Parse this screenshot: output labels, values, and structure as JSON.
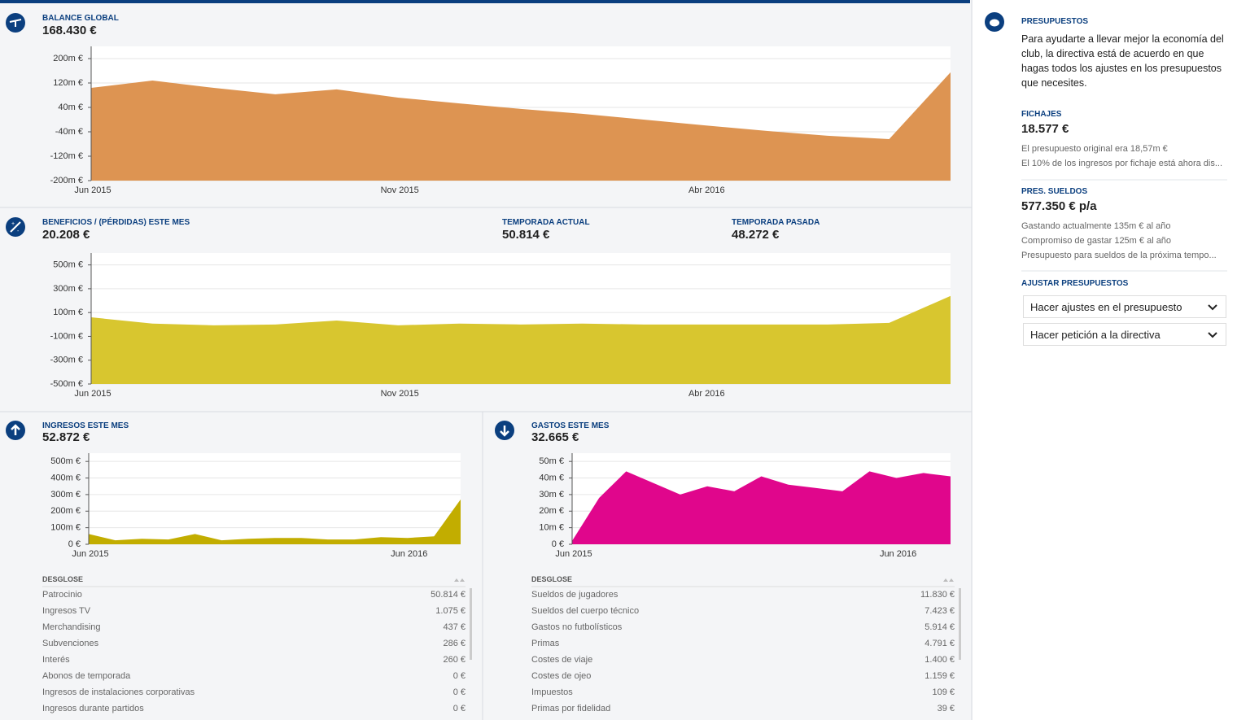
{
  "chart_data": [
    {
      "type": "area",
      "title": "BALANCE GLOBAL",
      "value": "168.430 €",
      "color": "#dd9452",
      "categories": [
        "Jun 2015",
        null,
        null,
        null,
        null,
        "Nov 2015",
        null,
        null,
        null,
        null,
        "Abr 2016",
        null,
        null,
        null,
        null
      ],
      "values": [
        104,
        128,
        104,
        83,
        99,
        72,
        53,
        35,
        19,
        0,
        -19,
        -37,
        -53,
        -64,
        155
      ],
      "ylim": [
        -200,
        240
      ],
      "yticks": [
        {
          "value": 200,
          "label": "200m €"
        },
        {
          "value": 120,
          "label": "120m €"
        },
        {
          "value": 40,
          "label": "40m €"
        },
        {
          "value": -40,
          "label": "-40m €"
        },
        {
          "value": -120,
          "label": "-120m €"
        },
        {
          "value": -200,
          "label": "-200m €"
        }
      ],
      "grid": true
    },
    {
      "type": "area",
      "title": "BENEFICIOS / (PÉRDIDAS) ESTE MES",
      "value": "20.208 €",
      "color": "#d8c62f",
      "stats": [
        {
          "label": "TEMPORADA ACTUAL",
          "value": "50.814 €"
        },
        {
          "label": "TEMPORADA PASADA",
          "value": "48.272 €"
        }
      ],
      "categories": [
        "Jun 2015",
        null,
        null,
        null,
        null,
        "Nov 2015",
        null,
        null,
        null,
        null,
        "Abr 2016",
        null,
        null,
        null,
        null
      ],
      "values": [
        60,
        7,
        -7,
        0,
        33,
        -7,
        7,
        0,
        7,
        0,
        0,
        0,
        0,
        13,
        240
      ],
      "ylim": [
        -500,
        600
      ],
      "yticks": [
        {
          "value": 500,
          "label": "500m €"
        },
        {
          "value": 300,
          "label": "300m €"
        },
        {
          "value": 100,
          "label": "100m €"
        },
        {
          "value": -100,
          "label": "-100m €"
        },
        {
          "value": -300,
          "label": "-300m €"
        },
        {
          "value": -500,
          "label": "-500m €"
        }
      ],
      "grid": true
    },
    {
      "type": "area",
      "title": "INGRESOS ESTE MES",
      "value": "52.872 €",
      "color": "#c2ad00",
      "categories": [
        "Jun 2015",
        null,
        null,
        null,
        null,
        null,
        null,
        null,
        null,
        null,
        null,
        null,
        "Jun 2016",
        null,
        null
      ],
      "values": [
        62,
        24,
        33,
        29,
        62,
        24,
        33,
        38,
        38,
        29,
        29,
        43,
        38,
        48,
        271
      ],
      "ylim": [
        0,
        550
      ],
      "yticks": [
        {
          "value": 500,
          "label": "500m €"
        },
        {
          "value": 400,
          "label": "400m €"
        },
        {
          "value": 300,
          "label": "300m €"
        },
        {
          "value": 200,
          "label": "200m €"
        },
        {
          "value": 100,
          "label": "100m €"
        },
        {
          "value": 0,
          "label": "0 €"
        }
      ],
      "grid": true,
      "breakdown": {
        "header": "DESGLOSE",
        "rows": [
          [
            "Patrocinio",
            "50.814 €"
          ],
          [
            "Ingresos TV",
            "1.075 €"
          ],
          [
            "Merchandising",
            "437 €"
          ],
          [
            "Subvenciones",
            "286 €"
          ],
          [
            "Interés",
            "260 €"
          ],
          [
            "Abonos de temporada",
            "0 €"
          ],
          [
            "Ingresos de instalaciones corporativas",
            "0 €"
          ],
          [
            "Ingresos durante partidos",
            "0 €"
          ]
        ]
      }
    },
    {
      "type": "area",
      "title": "GASTOS ESTE MES",
      "value": "32.665 €",
      "color": "#e0068c",
      "categories": [
        "Jun 2015",
        null,
        null,
        null,
        null,
        null,
        null,
        null,
        null,
        null,
        null,
        null,
        "Jun 2016",
        null,
        null
      ],
      "values": [
        2,
        28,
        44,
        37,
        30,
        35,
        32,
        41,
        36,
        34,
        32,
        44,
        40,
        43,
        41
      ],
      "ylim": [
        0,
        55
      ],
      "yticks": [
        {
          "value": 50,
          "label": "50m €"
        },
        {
          "value": 40,
          "label": "40m €"
        },
        {
          "value": 30,
          "label": "30m €"
        },
        {
          "value": 20,
          "label": "20m €"
        },
        {
          "value": 10,
          "label": "10m €"
        },
        {
          "value": 0,
          "label": "0 €"
        }
      ],
      "grid": true,
      "breakdown": {
        "header": "DESGLOSE",
        "rows": [
          [
            "Sueldos de jugadores",
            "11.830 €"
          ],
          [
            "Sueldos del cuerpo técnico",
            "7.423 €"
          ],
          [
            "Gastos no futbolísticos",
            "5.914 €"
          ],
          [
            "Primas",
            "4.791 €"
          ],
          [
            "Costes de viaje",
            "1.400 €"
          ],
          [
            "Costes de ojeo",
            "1.159 €"
          ],
          [
            "Impuestos",
            "109 €"
          ],
          [
            "Primas por fidelidad",
            "39 €"
          ]
        ]
      }
    }
  ],
  "budgets": {
    "title": "PRESUPUESTOS",
    "text": "Para ayudarte a llevar mejor la economía del club, la directiva está de acuerdo en que hagas todos los ajustes en los presupuestos que necesites.",
    "transfers": {
      "title": "FICHAJES",
      "value": "18.577 €",
      "notes": [
        "El presupuesto original era 18,57m €",
        "El 10% de los ingresos por fichaje está ahora dis..."
      ]
    },
    "wages": {
      "title": "PRES. SUELDOS",
      "value": "577.350 € p/a",
      "notes": [
        "Gastando actualmente 135m € al año",
        "Compromiso de gastar 125m € al año",
        "Presupuesto para sueldos de la próxima tempo..."
      ]
    },
    "adjust": {
      "title": "AJUSTAR PRESUPUESTOS",
      "options": [
        "Hacer ajustes en el presupuesto",
        "Hacer petición a la directiva"
      ]
    }
  }
}
